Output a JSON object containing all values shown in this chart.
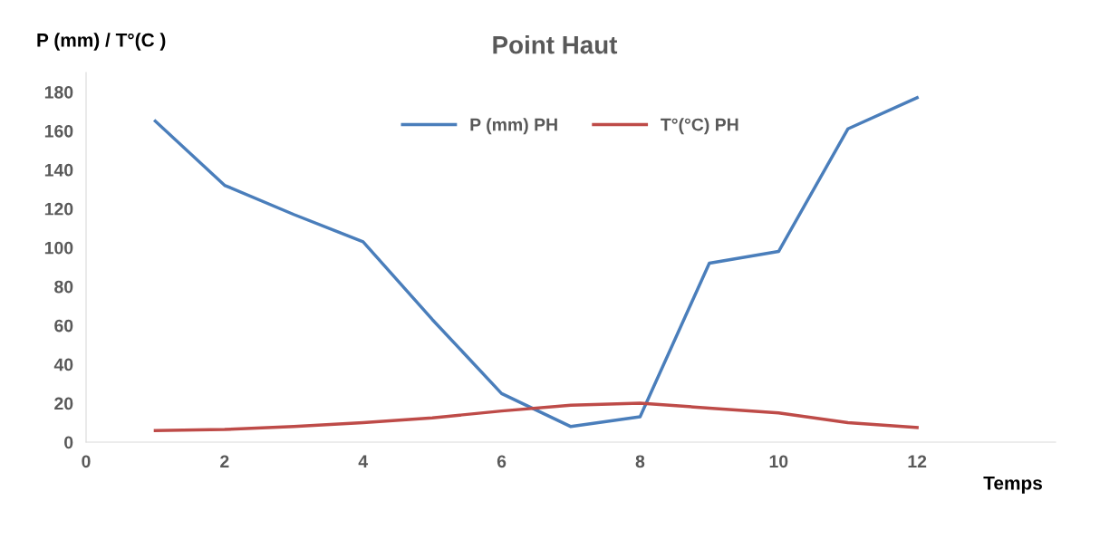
{
  "chart_data": {
    "type": "line",
    "title": "Point Haut",
    "xlabel": "Temps",
    "ylabel": "P (mm) / T°(C )",
    "x": [
      1,
      2,
      3,
      4,
      5,
      6,
      7,
      8,
      9,
      10,
      11,
      12
    ],
    "series": [
      {
        "name": "P (mm) PH",
        "color": "#4a7ebb",
        "values": [
          165,
          132,
          117,
          103,
          63,
          25,
          8,
          13,
          92,
          98,
          161,
          177
        ]
      },
      {
        "name": "T°(°C) PH",
        "color": "#be4b48",
        "values": [
          6,
          6.5,
          8,
          10,
          12.5,
          16,
          19,
          20,
          17.5,
          15,
          10,
          7.5
        ]
      }
    ],
    "xlim": [
      0,
      14
    ],
    "xticks": [
      0,
      2,
      4,
      6,
      8,
      10,
      12
    ],
    "ylim": [
      0,
      190
    ],
    "yticks": [
      0,
      20,
      40,
      60,
      80,
      100,
      120,
      140,
      160,
      180
    ],
    "grid": false,
    "legend": "top",
    "marker": "none",
    "line_style": "solid"
  }
}
